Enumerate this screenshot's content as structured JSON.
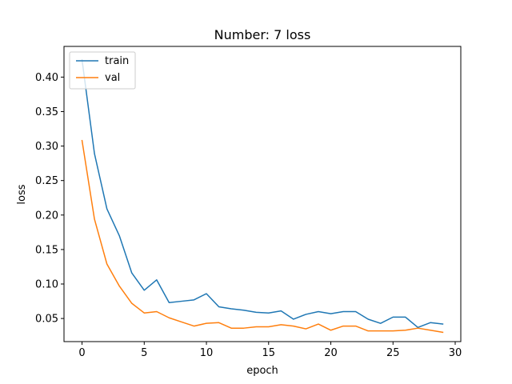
{
  "chart_data": {
    "type": "line",
    "title": "Number: 7 loss",
    "xlabel": "epoch",
    "ylabel": "loss",
    "xlim": [
      -1.45,
      30.45
    ],
    "ylim": [
      0.0165,
      0.4445
    ],
    "xticks": [
      0,
      5,
      10,
      15,
      20,
      25,
      30
    ],
    "yticks": [
      0.05,
      0.1,
      0.15,
      0.2,
      0.25,
      0.3,
      0.35,
      0.4
    ],
    "ytick_labels": [
      "0.05",
      "0.10",
      "0.15",
      "0.20",
      "0.25",
      "0.30",
      "0.35",
      "0.40"
    ],
    "grid": false,
    "legend_position": "upper-left",
    "x": [
      0,
      1,
      2,
      3,
      4,
      5,
      6,
      7,
      8,
      9,
      10,
      11,
      12,
      13,
      14,
      15,
      16,
      17,
      18,
      19,
      20,
      21,
      22,
      23,
      24,
      25,
      26,
      27,
      28,
      29
    ],
    "series": [
      {
        "name": "train",
        "color": "#1f77b4",
        "values": [
          0.425,
          0.289,
          0.209,
          0.17,
          0.116,
          0.091,
          0.106,
          0.073,
          0.075,
          0.077,
          0.086,
          0.067,
          0.064,
          0.062,
          0.059,
          0.058,
          0.061,
          0.049,
          0.056,
          0.06,
          0.057,
          0.06,
          0.06,
          0.049,
          0.043,
          0.052,
          0.052,
          0.037,
          0.044,
          0.042
        ]
      },
      {
        "name": "val",
        "color": "#ff7f0e",
        "values": [
          0.308,
          0.194,
          0.129,
          0.097,
          0.072,
          0.058,
          0.06,
          0.051,
          0.045,
          0.039,
          0.043,
          0.044,
          0.036,
          0.036,
          0.038,
          0.038,
          0.041,
          0.039,
          0.035,
          0.042,
          0.033,
          0.039,
          0.039,
          0.032,
          0.032,
          0.032,
          0.033,
          0.036,
          0.033,
          0.03
        ]
      }
    ]
  }
}
